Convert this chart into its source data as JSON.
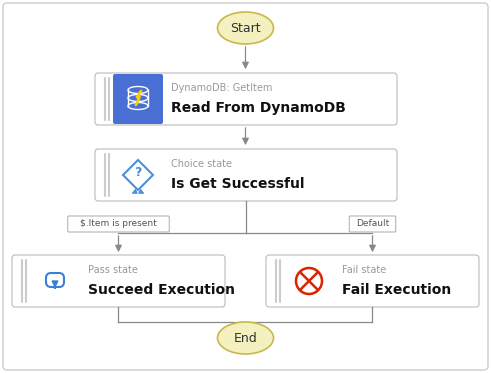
{
  "background_color": "#ffffff",
  "outer_border_color": "#cccccc",
  "start_end_fill": "#f5f0c0",
  "start_end_border": "#c8b84a",
  "node_fill": "#ffffff",
  "node_border": "#bbbbbb",
  "dynamo_icon_bg": "#4a6fd4",
  "arrow_color": "#888888",
  "label_color": "#999999",
  "title_color": "#111111",
  "choice_icon_color": "#4a90d9",
  "pass_icon_color": "#3a7fd4",
  "fail_icon_color": "#dd2200",
  "stripe_color": "#cccccc",
  "fig_w": 4.91,
  "fig_h": 3.73,
  "dpi": 100,
  "start_label": "Start",
  "end_label": "End",
  "node1_type": "DynamoDB: GetItem",
  "node1_title": "Read From DynamoDB",
  "node2_type": "Choice state",
  "node2_title": "Is Get Successful",
  "node3_type": "Pass state",
  "node3_title": "Succeed Execution",
  "node4_type": "Fail state",
  "node4_title": "Fail Execution",
  "label_left": "$.Item is present",
  "label_right": "Default"
}
